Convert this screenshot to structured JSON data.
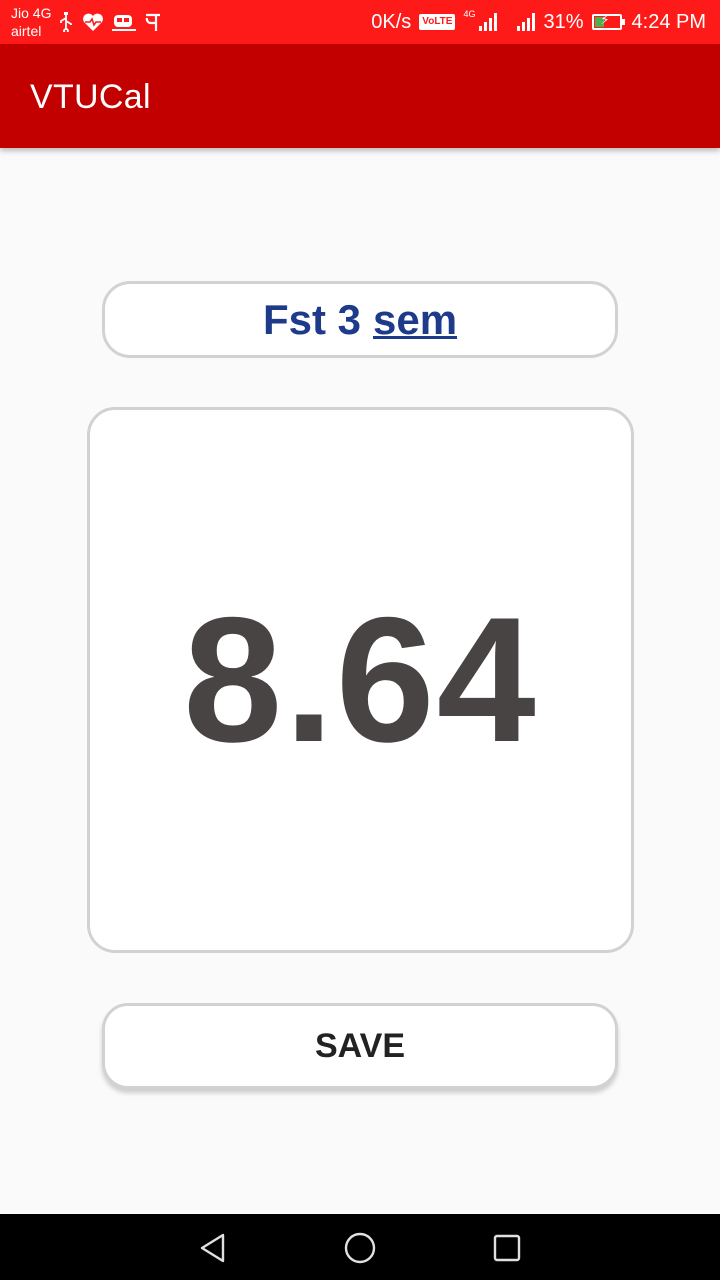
{
  "status_bar": {
    "carrier_1": "Jio 4G",
    "carrier_2": "airtel",
    "net_speed": "0K/s",
    "volte_label": "VoLTE",
    "net_type": "4G",
    "battery_percent": "31%",
    "time": "4:24 PM",
    "left_icons": [
      "usb-icon",
      "health-icon",
      "train-icon",
      "pe-icon"
    ],
    "bar_color": "#ff1a1a"
  },
  "app_bar": {
    "title": "VTUCal",
    "color": "#c20000"
  },
  "name_field": {
    "text_part": "Fst 3",
    "underlined_part": "sem",
    "text_color": "#1e3a8a"
  },
  "result": {
    "value": "8.64",
    "text_color": "#474443"
  },
  "save_button": {
    "label": "SAVE"
  },
  "nav_bar": {
    "buttons": [
      "back-icon",
      "home-icon",
      "recents-icon"
    ]
  }
}
